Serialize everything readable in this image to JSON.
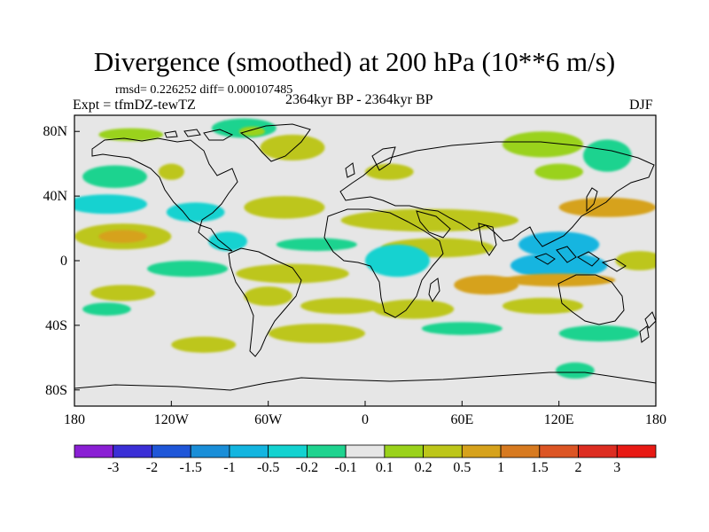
{
  "chart_data": {
    "type": "heatmap",
    "title": "Divergence (smoothed) at 200 hPa (10**6 m/s)",
    "stats_line": "rmsd= 0.226252 diff= 0.000107485",
    "experiment": "Expt = tfmDZ-tewTZ",
    "period": "2364kyr BP - 2364kyr BP",
    "season": "DJF",
    "x_range": [
      -180,
      180
    ],
    "y_range": [
      -90,
      90
    ],
    "x_ticks": [
      {
        "value": -180,
        "label": "180"
      },
      {
        "value": -120,
        "label": "120W"
      },
      {
        "value": -60,
        "label": "60W"
      },
      {
        "value": 0,
        "label": "0"
      },
      {
        "value": 60,
        "label": "60E"
      },
      {
        "value": 120,
        "label": "120E"
      },
      {
        "value": 180,
        "label": "180"
      }
    ],
    "y_ticks": [
      {
        "value": 80,
        "label": "80N"
      },
      {
        "value": 40,
        "label": "40N"
      },
      {
        "value": 0,
        "label": "0"
      },
      {
        "value": -40,
        "label": "40S"
      },
      {
        "value": -80,
        "label": "80S"
      }
    ],
    "colorbar": {
      "labels": [
        "-3",
        "-2",
        "-1.5",
        "-1",
        "-0.5",
        "-0.2",
        "-0.1",
        "0.1",
        "0.2",
        "0.5",
        "1",
        "1.5",
        "2",
        "3"
      ],
      "colors": [
        "#8a1fd4",
        "#3b2fd6",
        "#1f56d8",
        "#1a8ed8",
        "#13b5e0",
        "#13d2d0",
        "#1fd38f",
        "#e6e6e6",
        "#9ad21b",
        "#bdc61a",
        "#d6a21c",
        "#d77a20",
        "#dc5524",
        "#dd2d21",
        "#e81a14"
      ]
    },
    "anomaly_regions": [
      {
        "lon": -75,
        "lat": 82,
        "rlon": 20,
        "rlat": 6,
        "value": -0.15
      },
      {
        "lon": -145,
        "lat": 78,
        "rlon": 20,
        "rlat": 4,
        "value": 0.15
      },
      {
        "lon": -70,
        "lat": 80,
        "rlon": 8,
        "rlat": 3,
        "value": 0.15
      },
      {
        "lon": -45,
        "lat": 70,
        "rlon": 20,
        "rlat": 8,
        "value": 0.3
      },
      {
        "lon": 110,
        "lat": 72,
        "rlon": 25,
        "rlat": 8,
        "value": 0.15
      },
      {
        "lon": 150,
        "lat": 65,
        "rlon": 15,
        "rlat": 10,
        "value": -0.15
      },
      {
        "lon": -155,
        "lat": 52,
        "rlon": 20,
        "rlat": 7,
        "value": -0.15
      },
      {
        "lon": -120,
        "lat": 55,
        "rlon": 8,
        "rlat": 5,
        "value": 0.3
      },
      {
        "lon": 15,
        "lat": 55,
        "rlon": 15,
        "rlat": 5,
        "value": 0.3
      },
      {
        "lon": 120,
        "lat": 55,
        "rlon": 15,
        "rlat": 5,
        "value": 0.15
      },
      {
        "lon": -160,
        "lat": 35,
        "rlon": 25,
        "rlat": 6,
        "value": -0.3
      },
      {
        "lon": -105,
        "lat": 30,
        "rlon": 18,
        "rlat": 6,
        "value": -0.3
      },
      {
        "lon": -50,
        "lat": 33,
        "rlon": 25,
        "rlat": 7,
        "value": 0.3
      },
      {
        "lon": 40,
        "lat": 25,
        "rlon": 55,
        "rlat": 7,
        "value": 0.35
      },
      {
        "lon": 150,
        "lat": 33,
        "rlon": 30,
        "rlat": 6,
        "value": 0.6
      },
      {
        "lon": -150,
        "lat": 15,
        "rlon": 30,
        "rlat": 8,
        "value": 0.3
      },
      {
        "lon": -150,
        "lat": 15,
        "rlon": 15,
        "rlat": 4,
        "value": 0.8
      },
      {
        "lon": -85,
        "lat": 12,
        "rlon": 12,
        "rlat": 6,
        "value": -0.3
      },
      {
        "lon": -30,
        "lat": 10,
        "rlon": 25,
        "rlat": 4,
        "value": -0.15
      },
      {
        "lon": 45,
        "lat": 8,
        "rlon": 35,
        "rlat": 6,
        "value": 0.3
      },
      {
        "lon": 120,
        "lat": 10,
        "rlon": 25,
        "rlat": 8,
        "value": -0.6
      },
      {
        "lon": -110,
        "lat": -5,
        "rlon": 25,
        "rlat": 5,
        "value": -0.15
      },
      {
        "lon": -45,
        "lat": -8,
        "rlon": 35,
        "rlat": 6,
        "value": 0.4
      },
      {
        "lon": 20,
        "lat": 0,
        "rlon": 20,
        "rlat": 10,
        "value": -0.5
      },
      {
        "lon": 120,
        "lat": -3,
        "rlon": 30,
        "rlat": 8,
        "value": -0.6
      },
      {
        "lon": 170,
        "lat": 0,
        "rlon": 15,
        "rlat": 6,
        "value": 0.25
      },
      {
        "lon": 120,
        "lat": -12,
        "rlon": 35,
        "rlat": 4,
        "value": 0.8
      },
      {
        "lon": 75,
        "lat": -15,
        "rlon": 20,
        "rlat": 6,
        "value": 0.5
      },
      {
        "lon": -150,
        "lat": -20,
        "rlon": 20,
        "rlat": 5,
        "value": 0.3
      },
      {
        "lon": -160,
        "lat": -30,
        "rlon": 15,
        "rlat": 4,
        "value": -0.15
      },
      {
        "lon": -60,
        "lat": -22,
        "rlon": 15,
        "rlat": 6,
        "value": 0.3
      },
      {
        "lon": -15,
        "lat": -28,
        "rlon": 25,
        "rlat": 5,
        "value": 0.3
      },
      {
        "lon": 30,
        "lat": -30,
        "rlon": 25,
        "rlat": 6,
        "value": 0.3
      },
      {
        "lon": 110,
        "lat": -28,
        "rlon": 25,
        "rlat": 5,
        "value": 0.3
      },
      {
        "lon": -30,
        "lat": -45,
        "rlon": 30,
        "rlat": 6,
        "value": 0.3
      },
      {
        "lon": 60,
        "lat": -42,
        "rlon": 25,
        "rlat": 4,
        "value": -0.15
      },
      {
        "lon": -100,
        "lat": -52,
        "rlon": 20,
        "rlat": 5,
        "value": 0.2
      },
      {
        "lon": 145,
        "lat": -45,
        "rlon": 25,
        "rlat": 5,
        "value": -0.15
      },
      {
        "lon": 130,
        "lat": -68,
        "rlon": 12,
        "rlat": 5,
        "value": -0.15
      }
    ]
  }
}
